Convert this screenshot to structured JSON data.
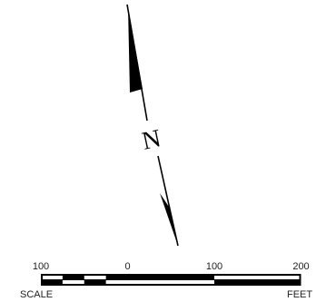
{
  "north_arrow": {
    "label": "N"
  },
  "scale_bar": {
    "ticks": [
      {
        "label": "100",
        "value": -100
      },
      {
        "label": "0",
        "value": 0
      },
      {
        "label": "100",
        "value": 100
      },
      {
        "label": "200",
        "value": 200
      }
    ],
    "left_caption": "SCALE",
    "right_caption": "FEET"
  },
  "colors": {
    "ink": "#000000",
    "text": "#222222",
    "background": "#ffffff"
  }
}
